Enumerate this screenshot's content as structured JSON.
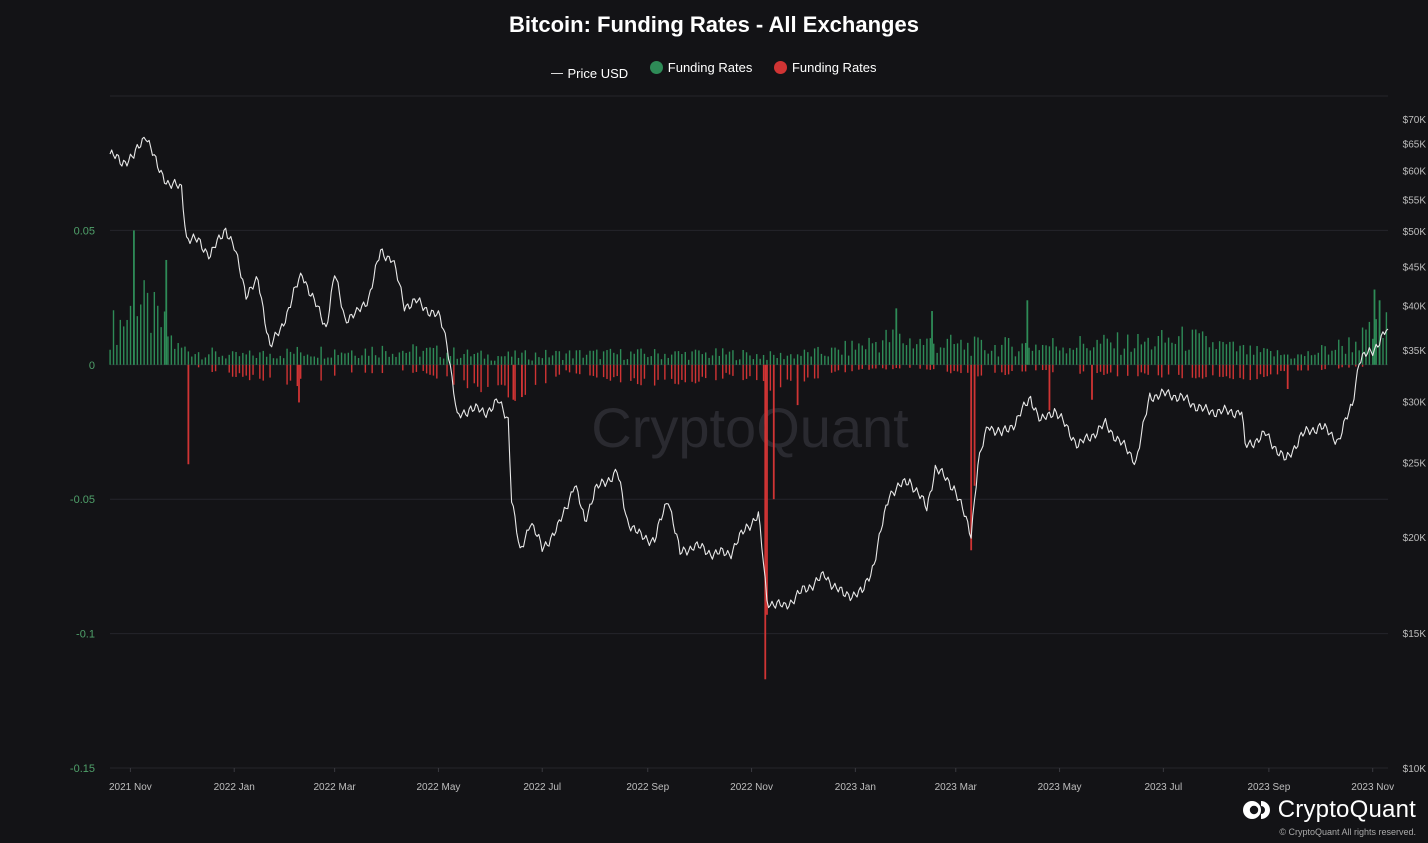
{
  "chart_data": {
    "type": "bar+line",
    "title": "Bitcoin: Funding Rates - All Exchanges",
    "legend": {
      "placement": "top-center",
      "items": [
        {
          "label": "Price USD",
          "marker": "line",
          "color": "#d9d9d9"
        },
        {
          "label": "Funding Rates",
          "marker": "dot",
          "color": "#2e8b57"
        },
        {
          "label": "Funding Rates",
          "marker": "dot",
          "color": "#d03434"
        }
      ]
    },
    "x_range": [
      "2021-10-20",
      "2023-11-10"
    ],
    "x_ticks": [
      {
        "label": "2021 Nov",
        "date": "2021-11-01"
      },
      {
        "label": "2022 Jan",
        "date": "2022-01-01"
      },
      {
        "label": "2022 Mar",
        "date": "2022-03-01"
      },
      {
        "label": "2022 May",
        "date": "2022-05-01"
      },
      {
        "label": "2022 Jul",
        "date": "2022-07-01"
      },
      {
        "label": "2022 Sep",
        "date": "2022-09-01"
      },
      {
        "label": "2022 Nov",
        "date": "2022-11-01"
      },
      {
        "label": "2023 Jan",
        "date": "2023-01-01"
      },
      {
        "label": "2023 Mar",
        "date": "2023-03-01"
      },
      {
        "label": "2023 May",
        "date": "2023-05-01"
      },
      {
        "label": "2023 Jul",
        "date": "2023-07-01"
      },
      {
        "label": "2023 Sep",
        "date": "2023-09-01"
      },
      {
        "label": "2023 Nov",
        "date": "2023-11-01"
      }
    ],
    "left_axis": {
      "scale": "linear",
      "range": [
        -0.15,
        0.1
      ],
      "ticks": [
        {
          "value": 0.05,
          "label": "0.05"
        },
        {
          "value": 0,
          "label": "0"
        },
        {
          "value": -0.05,
          "label": "-0.05"
        },
        {
          "value": -0.1,
          "label": "-0.1"
        },
        {
          "value": -0.15,
          "label": "-0.15"
        }
      ]
    },
    "right_axis": {
      "scale": "log",
      "range": [
        10000,
        70000
      ],
      "ticks": [
        {
          "value": 70000,
          "label": "$70K"
        },
        {
          "value": 65000,
          "label": "$65K"
        },
        {
          "value": 60000,
          "label": "$60K"
        },
        {
          "value": 55000,
          "label": "$55K"
        },
        {
          "value": 50000,
          "label": "$50K"
        },
        {
          "value": 45000,
          "label": "$45K"
        },
        {
          "value": 40000,
          "label": "$40K"
        },
        {
          "value": 35000,
          "label": "$35K"
        },
        {
          "value": 30000,
          "label": "$30K"
        },
        {
          "value": 25000,
          "label": "$25K"
        },
        {
          "value": 20000,
          "label": "$20K"
        },
        {
          "value": 15000,
          "label": "$15K"
        },
        {
          "value": 10000,
          "label": "$10K"
        }
      ]
    },
    "grid": true,
    "price_series": {
      "name": "Price USD",
      "color": "#e8e8e8",
      "points": [
        [
          "2021-10-20",
          63000
        ],
        [
          "2021-10-27",
          61500
        ],
        [
          "2021-11-03",
          62500
        ],
        [
          "2021-11-10",
          67000
        ],
        [
          "2021-11-17",
          60500
        ],
        [
          "2021-11-24",
          57500
        ],
        [
          "2021-12-01",
          57000
        ],
        [
          "2021-12-04",
          49000
        ],
        [
          "2021-12-11",
          48500
        ],
        [
          "2021-12-18",
          46500
        ],
        [
          "2021-12-27",
          50500
        ],
        [
          "2022-01-01",
          47500
        ],
        [
          "2022-01-08",
          41500
        ],
        [
          "2022-01-15",
          43000
        ],
        [
          "2022-01-22",
          35500
        ],
        [
          "2022-01-28",
          37000
        ],
        [
          "2022-02-05",
          41500
        ],
        [
          "2022-02-10",
          44000
        ],
        [
          "2022-02-17",
          40500
        ],
        [
          "2022-02-24",
          37500
        ],
        [
          "2022-03-01",
          44000
        ],
        [
          "2022-03-07",
          38500
        ],
        [
          "2022-03-14",
          39000
        ],
        [
          "2022-03-21",
          41000
        ],
        [
          "2022-03-28",
          47000
        ],
        [
          "2022-04-04",
          46000
        ],
        [
          "2022-04-11",
          40000
        ],
        [
          "2022-04-18",
          40500
        ],
        [
          "2022-04-25",
          39500
        ],
        [
          "2022-05-02",
          38500
        ],
        [
          "2022-05-06",
          36000
        ],
        [
          "2022-05-10",
          31000
        ],
        [
          "2022-05-12",
          28500
        ],
        [
          "2022-05-20",
          29500
        ],
        [
          "2022-05-28",
          29000
        ],
        [
          "2022-06-05",
          30000
        ],
        [
          "2022-06-11",
          28500
        ],
        [
          "2022-06-13",
          22500
        ],
        [
          "2022-06-18",
          19000
        ],
        [
          "2022-06-24",
          21000
        ],
        [
          "2022-07-01",
          19300
        ],
        [
          "2022-07-10",
          20500
        ],
        [
          "2022-07-20",
          23400
        ],
        [
          "2022-07-26",
          21000
        ],
        [
          "2022-08-01",
          23000
        ],
        [
          "2022-08-14",
          24300
        ],
        [
          "2022-08-20",
          21000
        ],
        [
          "2022-08-28",
          20000
        ],
        [
          "2022-09-05",
          19800
        ],
        [
          "2022-09-13",
          22500
        ],
        [
          "2022-09-20",
          19000
        ],
        [
          "2022-09-28",
          19500
        ],
        [
          "2022-10-10",
          19000
        ],
        [
          "2022-10-20",
          19100
        ],
        [
          "2022-10-29",
          20600
        ],
        [
          "2022-11-05",
          21300
        ],
        [
          "2022-11-08",
          18500
        ],
        [
          "2022-11-10",
          16500
        ],
        [
          "2022-11-20",
          16200
        ],
        [
          "2022-12-01",
          17000
        ],
        [
          "2022-12-14",
          17800
        ],
        [
          "2022-12-25",
          16800
        ],
        [
          "2023-01-05",
          16900
        ],
        [
          "2023-01-12",
          18500
        ],
        [
          "2023-01-21",
          22800
        ],
        [
          "2023-02-02",
          23700
        ],
        [
          "2023-02-12",
          21800
        ],
        [
          "2023-02-17",
          24600
        ],
        [
          "2023-02-28",
          23200
        ],
        [
          "2023-03-10",
          20200
        ],
        [
          "2023-03-14",
          24800
        ],
        [
          "2023-03-20",
          28000
        ],
        [
          "2023-03-28",
          27200
        ],
        [
          "2023-04-05",
          28200
        ],
        [
          "2023-04-14",
          30400
        ],
        [
          "2023-04-20",
          28200
        ],
        [
          "2023-04-28",
          29300
        ],
        [
          "2023-05-12",
          26300
        ],
        [
          "2023-05-28",
          28000
        ],
        [
          "2023-06-15",
          25100
        ],
        [
          "2023-06-23",
          30500
        ],
        [
          "2023-07-05",
          30700
        ],
        [
          "2023-07-15",
          30100
        ],
        [
          "2023-07-25",
          29200
        ],
        [
          "2023-08-05",
          29100
        ],
        [
          "2023-08-16",
          29100
        ],
        [
          "2023-08-18",
          26200
        ],
        [
          "2023-08-30",
          27200
        ],
        [
          "2023-09-11",
          25100
        ],
        [
          "2023-09-20",
          27100
        ],
        [
          "2023-10-01",
          27900
        ],
        [
          "2023-10-12",
          26700
        ],
        [
          "2023-10-20",
          29800
        ],
        [
          "2023-10-24",
          33900
        ],
        [
          "2023-11-01",
          35000
        ],
        [
          "2023-11-10",
          37300
        ]
      ]
    },
    "funding_rates": {
      "positive_color": "#2e8b57",
      "negative_color": "#d03434",
      "baseline": 0,
      "envelope_positive": [
        [
          "2021-10-20",
          0.016
        ],
        [
          "2021-10-30",
          0.022
        ],
        [
          "2021-11-05",
          0.028
        ],
        [
          "2021-11-12",
          0.024
        ],
        [
          "2021-11-20",
          0.018
        ],
        [
          "2021-11-28",
          0.008
        ],
        [
          "2021-12-10",
          0.006
        ],
        [
          "2022-01-01",
          0.004
        ],
        [
          "2022-02-10",
          0.006
        ],
        [
          "2022-03-28",
          0.007
        ],
        [
          "2022-05-01",
          0.006
        ],
        [
          "2022-06-01",
          0.004
        ],
        [
          "2022-07-20",
          0.005
        ],
        [
          "2022-09-01",
          0.005
        ],
        [
          "2022-10-20",
          0.005
        ],
        [
          "2022-11-15",
          0.004
        ],
        [
          "2022-12-20",
          0.006
        ],
        [
          "2023-01-20",
          0.012
        ],
        [
          "2023-02-15",
          0.01
        ],
        [
          "2023-03-20",
          0.008
        ],
        [
          "2023-04-15",
          0.009
        ],
        [
          "2023-06-20",
          0.01
        ],
        [
          "2023-07-15",
          0.012
        ],
        [
          "2023-08-20",
          0.006
        ],
        [
          "2023-09-20",
          0.004
        ],
        [
          "2023-10-20",
          0.01
        ],
        [
          "2023-11-10",
          0.017
        ]
      ],
      "envelope_negative": [
        [
          "2021-10-20",
          0
        ],
        [
          "2021-12-01",
          0
        ],
        [
          "2022-01-10",
          -0.004
        ],
        [
          "2022-02-05",
          -0.006
        ],
        [
          "2022-03-10",
          -0.003
        ],
        [
          "2022-04-20",
          -0.002
        ],
        [
          "2022-05-15",
          -0.006
        ],
        [
          "2022-06-15",
          -0.009
        ],
        [
          "2022-07-15",
          -0.002
        ],
        [
          "2022-08-20",
          -0.005
        ],
        [
          "2022-09-20",
          -0.006
        ],
        [
          "2022-10-20",
          -0.003
        ],
        [
          "2022-11-15",
          -0.007
        ],
        [
          "2022-12-20",
          -0.002
        ],
        [
          "2023-02-01",
          -0.001
        ],
        [
          "2023-03-15",
          -0.003
        ],
        [
          "2023-04-20",
          -0.002
        ],
        [
          "2023-06-10",
          -0.003
        ],
        [
          "2023-08-20",
          -0.004
        ],
        [
          "2023-09-15",
          -0.002
        ],
        [
          "2023-11-10",
          0
        ]
      ],
      "spikes": [
        [
          "2021-11-03",
          0.05
        ],
        [
          "2021-11-22",
          0.039
        ],
        [
          "2021-12-05",
          -0.037
        ],
        [
          "2022-02-08",
          -0.014
        ],
        [
          "2022-06-14",
          -0.013
        ],
        [
          "2022-06-19",
          -0.012
        ],
        [
          "2022-11-09",
          -0.117
        ],
        [
          "2022-11-10",
          -0.093
        ],
        [
          "2022-11-14",
          -0.05
        ],
        [
          "2022-11-28",
          -0.015
        ],
        [
          "2023-01-25",
          0.021
        ],
        [
          "2023-02-15",
          0.02
        ],
        [
          "2023-03-10",
          -0.069
        ],
        [
          "2023-03-12",
          -0.045
        ],
        [
          "2023-04-12",
          0.024
        ],
        [
          "2023-04-25",
          -0.017
        ],
        [
          "2023-05-20",
          -0.013
        ],
        [
          "2023-09-12",
          -0.009
        ],
        [
          "2023-11-02",
          0.028
        ],
        [
          "2023-11-05",
          0.024
        ]
      ]
    },
    "watermark": "CryptoQuant"
  },
  "branding": {
    "logo_text": "CryptoQuant",
    "copyright": "© CryptoQuant All rights reserved."
  }
}
